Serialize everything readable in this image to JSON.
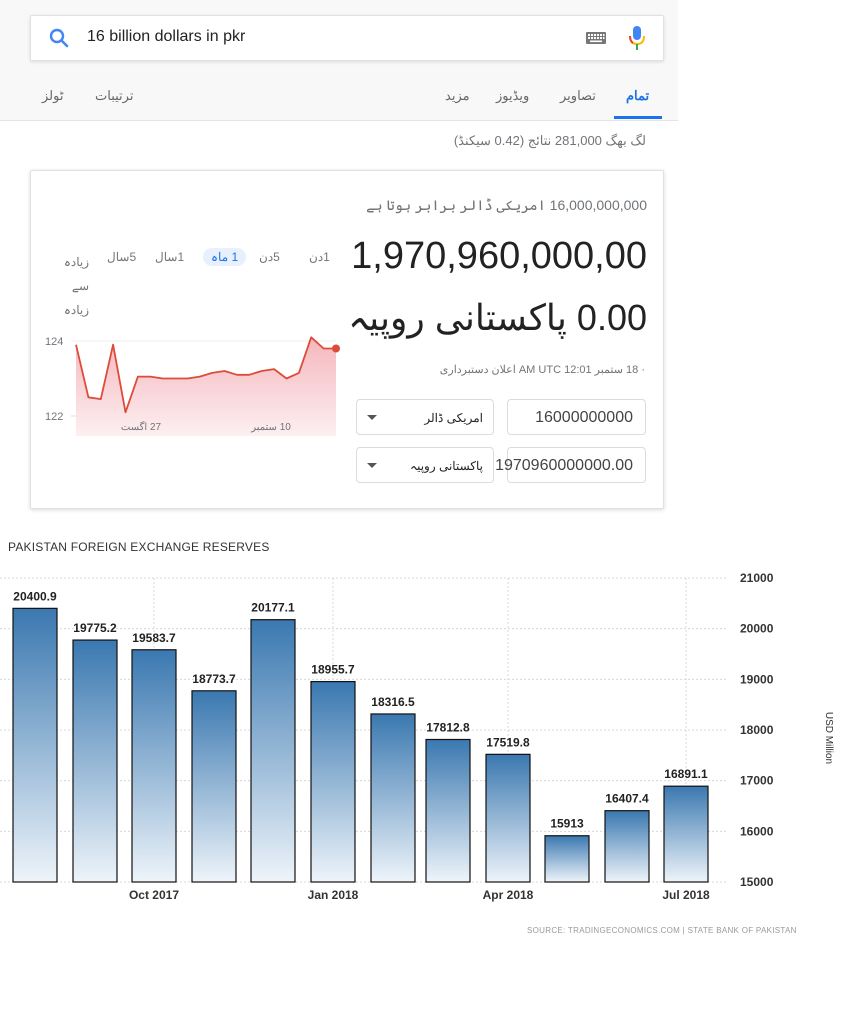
{
  "search": {
    "query": "16 billion dollars in pkr",
    "tabs": [
      {
        "label": "تمام",
        "active": true
      },
      {
        "label": "تصاویر"
      },
      {
        "label": "ویڈیوز"
      },
      {
        "label": "مزید"
      },
      {
        "label": "ترتیبات"
      },
      {
        "label": "ٹولز"
      }
    ],
    "stats": "لگ بھگ 281,000 نتائج (0.42 سیکنڈ)"
  },
  "converter": {
    "equals_text": "16,000,000,000 امریکی ڈالر برابر ہوتا ہے",
    "result_number": "1,970,960,000,00",
    "result_unit": "0.00 پاکستانی روپیہ",
    "updated": "· 18 ستمبر 12:01 AM UTC اعلان دستبرداری",
    "ranges": [
      {
        "label": "1دن"
      },
      {
        "label": "5دن"
      },
      {
        "label": "1 ماہ",
        "selected": true
      },
      {
        "label": "1سال"
      },
      {
        "label": "5سال"
      },
      {
        "label": "زیادہ سے زیادہ"
      }
    ],
    "from_amount": "16000000000",
    "from_currency": "امریکی ڈالر",
    "to_amount": "1970960000000.00",
    "to_currency": "پاکستانی روپیہ",
    "accent_color": "#dd4b39"
  },
  "mini_chart": {
    "type": "line",
    "y_ticks": [
      "124",
      "122"
    ],
    "x_ticks": [
      "27 اگست",
      "10 ستمبر"
    ],
    "ylim": [
      122,
      124
    ],
    "values": [
      123.9,
      122.5,
      122.45,
      123.9,
      122.1,
      123.05,
      123.05,
      123.0,
      123.0,
      123.0,
      123.05,
      123.15,
      123.2,
      123.1,
      123.1,
      123.2,
      123.25,
      123.0,
      123.15,
      124.1,
      123.8,
      123.8
    ]
  },
  "chart_data": {
    "type": "bar",
    "title": "PAKISTAN FOREIGN EXCHANGE RESERVES",
    "ylabel": "USD Million",
    "ylim": [
      15000,
      21000
    ],
    "y_ticks": [
      15000,
      16000,
      17000,
      18000,
      19000,
      20000,
      21000
    ],
    "x_ticks": [
      "Oct 2017",
      "Jan 2018",
      "Apr 2018",
      "Jul 2018"
    ],
    "values": [
      20400.9,
      19775.2,
      19583.7,
      18773.7,
      20177.1,
      18955.7,
      18316.5,
      17812.8,
      17519.8,
      15913,
      16407.4,
      16891.1
    ],
    "value_labels": [
      "20400.9",
      "19775.2",
      "19583.7",
      "18773.7",
      "20177.1",
      "18955.7",
      "18316.5",
      "17812.8",
      "17519.8",
      "15913",
      "16407.4",
      "16891.1"
    ],
    "grid": true,
    "bar_color": "#3a78b0",
    "source": "SOURCE: TRADINGECONOMICS.COM | STATE BANK OF PAKISTAN"
  }
}
